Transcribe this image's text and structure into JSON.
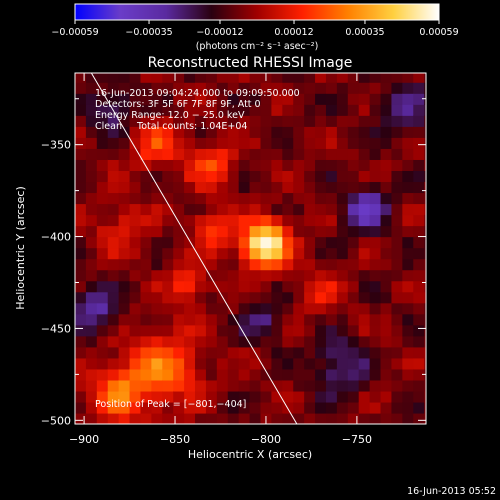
{
  "chart_data": {
    "type": "heatmap",
    "title": "Reconstructed RHESSI Image",
    "xlabel": "Heliocentric X (arcsec)",
    "ylabel": "Heliocentric Y (arcsec)",
    "xlim": [
      -905,
      -712
    ],
    "ylim": [
      -502,
      -311
    ],
    "xticks": [
      -900,
      -850,
      -800,
      -750
    ],
    "yticks": [
      -350,
      -400,
      -450,
      -500
    ],
    "xtick_labels": [
      "−900",
      "−850",
      "−800",
      "−750"
    ],
    "ytick_labels": [
      "−350",
      "−400",
      "−450",
      "−500"
    ],
    "colorbar": {
      "min": -0.00059,
      "max": 0.00059,
      "ticks": [
        -0.00059,
        -0.00035,
        -0.00012,
        0.00012,
        0.00035,
        0.00059
      ],
      "tick_labels": [
        "−0.00059",
        "−0.00035",
        "−0.00012",
        "0.00012",
        "0.00035",
        "0.00059"
      ],
      "units": "(photons cm⁻² s⁻¹ asec⁻²)",
      "colors": [
        "#0000ff",
        "#6a3cc8",
        "#5a2aa0",
        "#2a0010",
        "#a00000",
        "#ff2000",
        "#ff8000",
        "#ffd040",
        "#ffffff"
      ]
    },
    "annotations": [
      "16-Jun-2013 09:04:24.000 to 09:09:50.000",
      "Detectors: 3F 5F 6F 7F 8F 9F, Att 0",
      "Energy Range: 12.0 − 25.0 keV",
      "Clean     Total counts: 1.04E+04"
    ],
    "peak_label": "Position of Peak = [−801,−404]",
    "peak": {
      "x": -801,
      "y": -404
    },
    "limb_line": [
      {
        "x": -896,
        "y": -311
      },
      {
        "x": -783,
        "y": -502
      }
    ],
    "sources": [
      {
        "x": -801,
        "y": -404,
        "amp": 1.0,
        "sigma": 9
      },
      {
        "x": -830,
        "y": -395,
        "amp": 0.42,
        "sigma": 7
      },
      {
        "x": -842,
        "y": -425,
        "amp": 0.35,
        "sigma": 8
      },
      {
        "x": -855,
        "y": -470,
        "amp": 0.45,
        "sigma": 14
      },
      {
        "x": -880,
        "y": -485,
        "amp": 0.45,
        "sigma": 12
      },
      {
        "x": -830,
        "y": -360,
        "amp": 0.35,
        "sigma": 9
      },
      {
        "x": -860,
        "y": -350,
        "amp": 0.32,
        "sigma": 10
      },
      {
        "x": -880,
        "y": -395,
        "amp": 0.25,
        "sigma": 10
      },
      {
        "x": -770,
        "y": -430,
        "amp": 0.22,
        "sigma": 10
      },
      {
        "x": -745,
        "y": -385,
        "amp": -0.5,
        "sigma": 8
      },
      {
        "x": -760,
        "y": -470,
        "amp": -0.35,
        "sigma": 10
      },
      {
        "x": -895,
        "y": -440,
        "amp": -0.4,
        "sigma": 9
      },
      {
        "x": -885,
        "y": -330,
        "amp": -0.3,
        "sigma": 9
      },
      {
        "x": -800,
        "y": -445,
        "amp": -0.28,
        "sigma": 8
      },
      {
        "x": -725,
        "y": -330,
        "amp": -0.3,
        "sigma": 10
      }
    ]
  },
  "footer": {
    "date": "16-Jun-2013 05:52"
  }
}
